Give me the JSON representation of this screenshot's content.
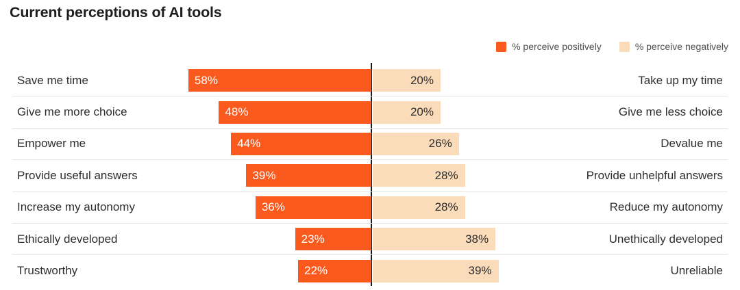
{
  "title": "Current perceptions of AI tools",
  "legend": {
    "positive_label": "% perceive positively",
    "negative_label": "% perceive negatively"
  },
  "colors": {
    "positive": "#FB5A1E",
    "negative": "#FADCBA",
    "positive_value_text": "#FFFFFF",
    "negative_value_text": "#2D2D2D",
    "center_line": "#1A1A1A",
    "divider": "#E3E3E3",
    "title_text": "#1E1E1E",
    "label_text": "#2D2D2D",
    "legend_text": "#4F4F4F",
    "background": "#FFFFFF"
  },
  "chart_data": {
    "type": "bar",
    "subtype": "diverging-horizontal",
    "title": "Current perceptions of AI tools",
    "legend_entries": [
      "% perceive positively",
      "% perceive negatively"
    ],
    "legend_position": "top-right",
    "value_unit": "%",
    "axis": {
      "center_baseline": true,
      "gridlines": false,
      "value_range_per_side": [
        0,
        60
      ]
    },
    "rows": [
      {
        "positive_label": "Save me time",
        "positive_value": 58,
        "negative_value": 20,
        "negative_label": "Take up my time"
      },
      {
        "positive_label": "Give me more choice",
        "positive_value": 48,
        "negative_value": 20,
        "negative_label": "Give me less choice"
      },
      {
        "positive_label": "Empower me",
        "positive_value": 44,
        "negative_value": 26,
        "negative_label": "Devalue me"
      },
      {
        "positive_label": "Provide useful answers",
        "positive_value": 39,
        "negative_value": 28,
        "negative_label": "Provide unhelpful answers"
      },
      {
        "positive_label": "Increase my autonomy",
        "positive_value": 36,
        "negative_value": 28,
        "negative_label": "Reduce my autonomy"
      },
      {
        "positive_label": "Ethically developed",
        "positive_value": 23,
        "negative_value": 38,
        "negative_label": "Unethically developed"
      },
      {
        "positive_label": "Trustworthy",
        "positive_value": 22,
        "negative_value": 39,
        "negative_label": "Unreliable"
      }
    ]
  }
}
